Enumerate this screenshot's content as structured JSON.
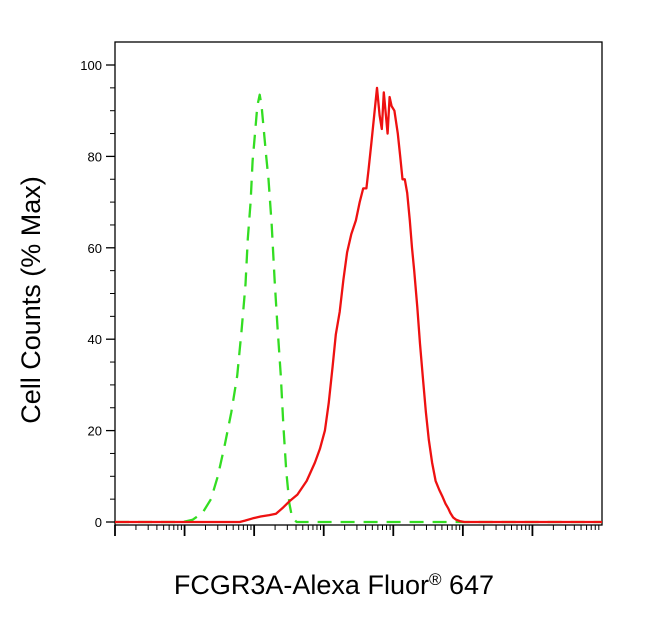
{
  "chart_data": {
    "type": "line",
    "title": "",
    "xlabel": "FCGR3A-Alexa Fluor® 647",
    "xlabel_parts": {
      "main": "FCGR3A-Alexa Fluor",
      "mark": "®",
      "suffix": " 647"
    },
    "ylabel": "Cell Counts (% Max)",
    "x_scale": "log",
    "xlim": [
      1,
      10000000
    ],
    "ylim": [
      0,
      100
    ],
    "y_ticks": [
      0,
      20,
      40,
      60,
      80,
      100
    ],
    "y_tick_labels": [
      "0",
      "20",
      "40",
      "60",
      "80",
      "100"
    ],
    "grid": false,
    "legend": "none",
    "series": [
      {
        "color": "#33dd22",
        "style": "dashed",
        "points": [
          [
            1.0,
            0
          ],
          [
            9.5,
            0
          ],
          [
            13.1,
            0.5
          ],
          [
            18.1,
            2
          ],
          [
            24,
            5
          ],
          [
            30,
            10
          ],
          [
            38,
            17
          ],
          [
            47,
            24
          ],
          [
            57,
            32
          ],
          [
            66,
            42
          ],
          [
            75,
            52
          ],
          [
            81,
            62
          ],
          [
            89,
            70
          ],
          [
            95,
            79
          ],
          [
            103,
            85
          ],
          [
            111,
            91
          ],
          [
            120,
            93.5
          ],
          [
            128,
            91
          ],
          [
            137,
            86
          ],
          [
            149,
            80
          ],
          [
            161,
            75
          ],
          [
            179,
            65
          ],
          [
            197,
            53
          ],
          [
            216,
            43
          ],
          [
            242,
            32
          ],
          [
            263,
            21
          ],
          [
            290,
            11
          ],
          [
            321,
            4
          ],
          [
            351,
            1
          ],
          [
            407,
            0
          ],
          [
            10000000,
            0
          ]
        ]
      },
      {
        "color": "#ee1111",
        "style": "solid",
        "points": [
          [
            1.0,
            0
          ],
          [
            62,
            0
          ],
          [
            74,
            0.3
          ],
          [
            96,
            0.8
          ],
          [
            124,
            1.2
          ],
          [
            165,
            1.5
          ],
          [
            206,
            1.8
          ],
          [
            254,
            3
          ],
          [
            320,
            4.5
          ],
          [
            419,
            6
          ],
          [
            570,
            9
          ],
          [
            747,
            13
          ],
          [
            880,
            16
          ],
          [
            1041,
            20
          ],
          [
            1178,
            26
          ],
          [
            1340,
            34
          ],
          [
            1490,
            41
          ],
          [
            1700,
            46
          ],
          [
            1920,
            53
          ],
          [
            2170,
            59
          ],
          [
            2490,
            63
          ],
          [
            2900,
            66
          ],
          [
            3290,
            70
          ],
          [
            3700,
            73
          ],
          [
            4110,
            73
          ],
          [
            4410,
            77
          ],
          [
            4840,
            83
          ],
          [
            5310,
            89
          ],
          [
            5840,
            95
          ],
          [
            6360,
            89
          ],
          [
            6840,
            86
          ],
          [
            7300,
            94
          ],
          [
            7840,
            89
          ],
          [
            8280,
            85
          ],
          [
            8850,
            93
          ],
          [
            9450,
            91
          ],
          [
            10380,
            90
          ],
          [
            11610,
            85
          ],
          [
            12580,
            80
          ],
          [
            13580,
            75
          ],
          [
            14660,
            75
          ],
          [
            15830,
            72
          ],
          [
            17290,
            66
          ],
          [
            18590,
            60
          ],
          [
            20000,
            55
          ],
          [
            22160,
            47
          ],
          [
            24180,
            39
          ],
          [
            26860,
            31
          ],
          [
            29470,
            24
          ],
          [
            32430,
            18
          ],
          [
            36120,
            13
          ],
          [
            40530,
            9
          ],
          [
            45800,
            7
          ],
          [
            51100,
            5.5
          ],
          [
            56300,
            4
          ],
          [
            61600,
            3
          ],
          [
            66100,
            2
          ],
          [
            72500,
            1
          ],
          [
            80000,
            0.5
          ],
          [
            90000,
            0.2
          ],
          [
            105000,
            0
          ],
          [
            10000000,
            0
          ]
        ]
      }
    ]
  }
}
